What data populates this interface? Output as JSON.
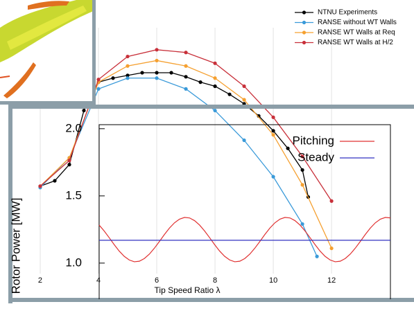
{
  "chart_data": [
    {
      "type": "line",
      "x_label": "Tip Speed Ratio λ",
      "xlim": [
        0.62,
        14.83
      ],
      "ylim": [
        0.923,
        2.897
      ],
      "xticks": [
        2,
        4,
        6,
        8,
        10,
        12
      ],
      "grid": true,
      "series": [
        {
          "name": "NTNU Experiments",
          "color": "#000000",
          "marker": true,
          "x": [
            2,
            2.5,
            3,
            3.5,
            4,
            4.5,
            5,
            5.5,
            6,
            6.5,
            7,
            7.5,
            8,
            8.5,
            9,
            9.5,
            10,
            10.5,
            11,
            11.2
          ],
          "values": [
            1.57,
            1.61,
            1.73,
            2.13,
            2.34,
            2.37,
            2.39,
            2.41,
            2.41,
            2.41,
            2.38,
            2.34,
            2.31,
            2.25,
            2.18,
            2.09,
            1.98,
            1.85,
            1.69,
            1.49
          ]
        },
        {
          "name": "RANSE without WT Walls",
          "color": "#3a9ad9",
          "marker": true,
          "x": [
            2,
            3,
            4,
            5,
            6,
            7,
            8,
            9,
            10,
            11,
            11.5
          ],
          "values": [
            1.56,
            1.78,
            2.29,
            2.37,
            2.37,
            2.29,
            2.13,
            1.91,
            1.64,
            1.29,
            1.05
          ]
        },
        {
          "name": "RANSE WT Walls at Req",
          "color": "#f5a030",
          "marker": true,
          "x": [
            2,
            3,
            4,
            5,
            6,
            7,
            8,
            9,
            10,
            11,
            12
          ],
          "values": [
            1.57,
            1.78,
            2.34,
            2.46,
            2.5,
            2.46,
            2.37,
            2.21,
            1.95,
            1.58,
            1.11
          ]
        },
        {
          "name": "RANSE WT Walls at H/2",
          "color": "#c8303a",
          "marker": true,
          "x": [
            2,
            3,
            4,
            5,
            6,
            7,
            8,
            9,
            10,
            11,
            12
          ],
          "values": [
            1.57,
            1.76,
            2.36,
            2.53,
            2.58,
            2.56,
            2.48,
            2.31,
            2.08,
            1.79,
            1.46
          ]
        }
      ]
    },
    {
      "type": "line",
      "y_label": "Rotor Power [MW]",
      "xlim": [
        0,
        2.9
      ],
      "ylim": [
        0.69,
        2.03
      ],
      "yticks": [
        {
          "value": 1,
          "label": "1.0"
        },
        {
          "value": 1.5,
          "label": "1.5"
        },
        {
          "value": 2,
          "label": "2.0"
        }
      ],
      "series": [
        {
          "name": "Pitching",
          "color": "#e03030",
          "x": [
            0,
            0.05,
            0.1,
            0.15,
            0.2,
            0.25,
            0.3,
            0.35,
            0.4,
            0.45,
            0.5,
            0.55,
            0.6,
            0.65,
            0.7,
            0.75,
            0.8,
            0.85,
            0.9,
            0.95,
            1,
            1.05,
            1.1,
            1.15,
            1.2,
            1.25,
            1.3,
            1.35,
            1.4,
            1.45,
            1.5,
            1.55,
            1.6,
            1.65,
            1.7,
            1.75,
            1.8,
            1.85,
            1.9,
            1.95,
            2,
            2.05,
            2.1,
            2.15,
            2.2,
            2.25,
            2.3,
            2.35,
            2.4,
            2.45,
            2.5,
            2.55,
            2.6,
            2.65,
            2.7,
            2.75,
            2.8,
            2.85,
            2.9
          ],
          "values": [
            1.283,
            1.239,
            1.189,
            1.137,
            1.089,
            1.05,
            1.023,
            1.01,
            1.014,
            1.034,
            1.067,
            1.111,
            1.161,
            1.213,
            1.261,
            1.3,
            1.327,
            1.34,
            1.336,
            1.316,
            1.283,
            1.239,
            1.189,
            1.137,
            1.089,
            1.05,
            1.023,
            1.01,
            1.014,
            1.034,
            1.067,
            1.111,
            1.161,
            1.213,
            1.261,
            1.3,
            1.327,
            1.34,
            1.336,
            1.316,
            1.283,
            1.239,
            1.189,
            1.137,
            1.089,
            1.05,
            1.023,
            1.01,
            1.014,
            1.034,
            1.067,
            1.111,
            1.161,
            1.213,
            1.261,
            1.3,
            1.327,
            1.34,
            1.336
          ]
        },
        {
          "name": "Steady",
          "color": "#3030c0",
          "x": [
            0,
            2.9
          ],
          "values": [
            1.17,
            1.17
          ]
        }
      ]
    }
  ]
}
